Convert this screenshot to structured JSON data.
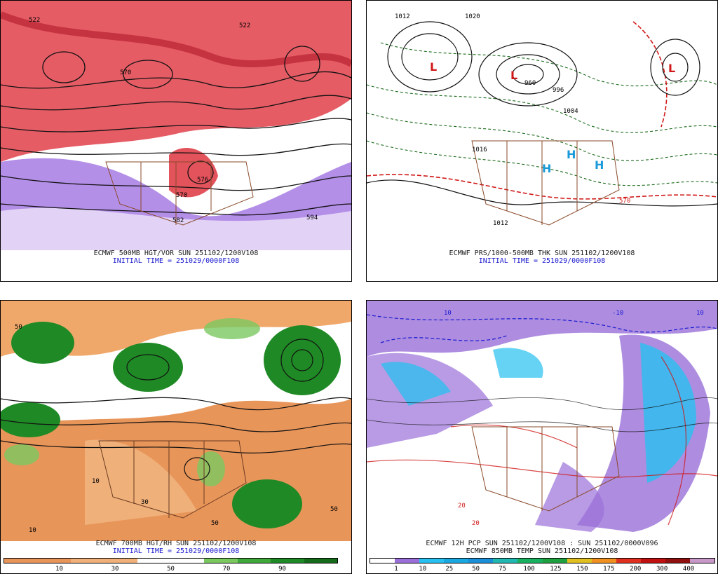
{
  "panels": [
    {
      "id": "p1",
      "caption": "ECMWF 500MB HGT/VOR SUN 251102/1200V108",
      "initial": "INITIAL TIME = 251029/0000F108",
      "labels": [
        "522",
        "570",
        "576",
        "582",
        "594",
        "570",
        "522"
      ]
    },
    {
      "id": "p2",
      "caption": "ECMWF PRS/1000-500MB THK SUN 251102/1200V108",
      "initial": "INITIAL TIME = 251029/0000F108",
      "labels": [
        "1012",
        "1020",
        "960",
        "996",
        "1004",
        "570",
        "1016",
        "1012"
      ]
    },
    {
      "id": "p3",
      "caption": "ECMWF 700MB HGT/RH SUN 251102/1200V108",
      "initial": "INITIAL TIME = 251029/0000F108",
      "labels": [
        "50",
        "10",
        "30",
        "50",
        "10",
        "50"
      ],
      "colorbar": {
        "colors": [
          "#e8955a",
          "#e8955a",
          "#f0b07a",
          "#f0b07a",
          "#ffffff",
          "#ffffff",
          "#7ac860",
          "#3fa83a",
          "#1f8a25",
          "#156b1a"
        ],
        "ticks": [
          "10",
          "30",
          "50",
          "70",
          "90"
        ]
      }
    },
    {
      "id": "p4",
      "caption": "ECMWF 12H PCP SUN 251102/1200V108 : SUN 251102/0000V096",
      "initial": "ECMWF 850MB TEMP SUN 251102/1200V108",
      "labels": [
        "10",
        "10",
        "20",
        "-10",
        "20"
      ],
      "colorbar": {
        "colors": [
          "#ffffff",
          "#9a70d8",
          "#27c0f0",
          "#1aa8e0",
          "#1a8fd8",
          "#20b8b0",
          "#19b060",
          "#1fa040",
          "#e0c020",
          "#f09020",
          "#e03020",
          "#c01010",
          "#901010",
          "#c898c8"
        ],
        "ticks": [
          "1",
          "10",
          "25",
          "50",
          "75",
          "100",
          "125",
          "150",
          "175",
          "200",
          "300",
          "400"
        ]
      }
    }
  ]
}
